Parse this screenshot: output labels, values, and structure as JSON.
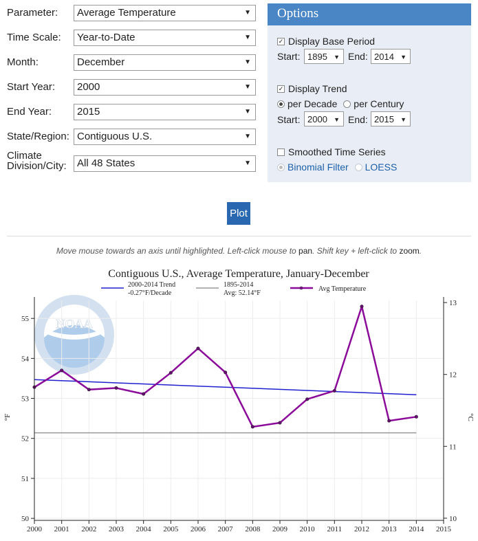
{
  "form": {
    "parameter": {
      "label": "Parameter:",
      "value": "Average Temperature"
    },
    "time_scale": {
      "label": "Time Scale:",
      "value": "Year-to-Date"
    },
    "month": {
      "label": "Month:",
      "value": "December"
    },
    "start_year": {
      "label": "Start Year:",
      "value": "2000"
    },
    "end_year": {
      "label": "End Year:",
      "value": "2015"
    },
    "state": {
      "label": "State/Region:",
      "value": "Contiguous U.S."
    },
    "division": {
      "label_1": "Climate",
      "label_2": "Division/City:",
      "value": "All 48 States"
    }
  },
  "options": {
    "title": "Options",
    "base_period_label": "Display Base Period",
    "base_period_checked": true,
    "start_label": "Start:",
    "end_label": "End:",
    "base_start": "1895",
    "base_end": "2014",
    "trend_label": "Display Trend",
    "trend_checked": true,
    "per_decade": "per Decade",
    "per_century": "per Century",
    "trend_start": "2000",
    "trend_end": "2015",
    "smoothed_label": "Smoothed Time Series",
    "smoothed_checked": false,
    "binomial": "Binomial Filter",
    "loess": "LOESS"
  },
  "plot_button": "Plot",
  "hint": {
    "part1": "Move mouse towards an axis until highlighted. Left-click mouse to ",
    "pan": "pan",
    "part2": ". Shift key + left-click to ",
    "zoom": "zoom",
    "part3": "."
  },
  "logo_text": "NOAA",
  "chart_data": {
    "type": "line",
    "title": "Contiguous U.S., Average Temperature, January-December",
    "xlabel": "",
    "ylabel": "°F",
    "ylabel_right": "°C",
    "xlim": [
      2000,
      2015
    ],
    "ylim": [
      49.95,
      55.45
    ],
    "ylim_right": [
      9.97,
      13.03
    ],
    "x_ticks": [
      "2000",
      "2001",
      "2002",
      "2003",
      "2004",
      "2005",
      "2006",
      "2007",
      "2008",
      "2009",
      "2010",
      "2011",
      "2012",
      "2013",
      "2014",
      "2015"
    ],
    "y_ticks": [
      "50",
      "51",
      "52",
      "53",
      "54",
      "55"
    ],
    "y_ticks_right": [
      "10",
      "11",
      "12",
      "13"
    ],
    "grid": true,
    "legend_position": "top",
    "series": [
      {
        "name": "Avg Temperature",
        "color": "#8b0a9a",
        "x": [
          2000,
          2001,
          2002,
          2003,
          2004,
          2005,
          2006,
          2007,
          2008,
          2009,
          2010,
          2011,
          2012,
          2013,
          2014
        ],
        "values": [
          53.28,
          53.7,
          53.22,
          53.26,
          53.11,
          53.64,
          54.25,
          53.65,
          52.29,
          52.39,
          52.98,
          53.19,
          55.3,
          52.44,
          52.54
        ]
      },
      {
        "name": "2000-2014 Trend",
        "name_2": "-0.27°F/Decade",
        "color": "#1f1fcf",
        "x": [
          2000,
          2014
        ],
        "values": [
          53.47,
          53.09
        ]
      },
      {
        "name": "1895-2014",
        "name_2": "Avg: 52.14°F",
        "color": "#999999",
        "x": [
          2000,
          2014
        ],
        "values": [
          52.14,
          52.14
        ]
      }
    ]
  }
}
